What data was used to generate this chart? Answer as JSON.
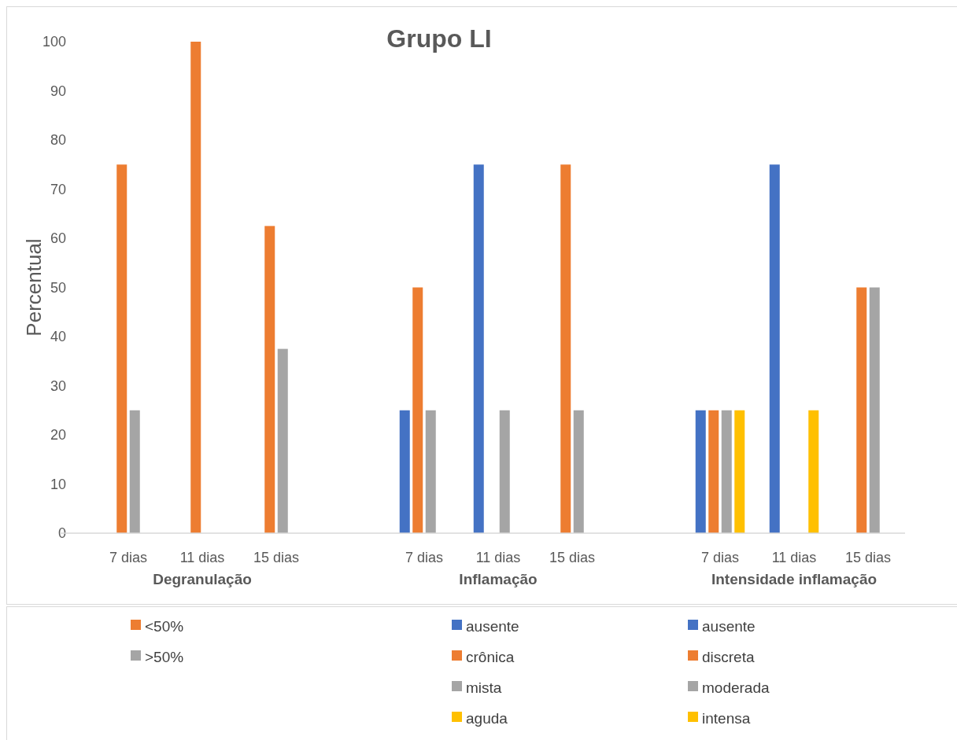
{
  "chart_data": {
    "type": "bar",
    "title": "Grupo LI",
    "ylabel": "Percentual",
    "categories": [
      "7 dias",
      "11 dias",
      "15 dias",
      null,
      "7 dias",
      "11 dias",
      "15 dias",
      null,
      "7 dias",
      "11 dias",
      "15 dias"
    ],
    "annotations": [
      "Degranulação",
      "Inflamação",
      "Intensidade inflamação"
    ],
    "series": [
      {
        "name": "<50%",
        "color": "#ed7d31",
        "values": [
          75,
          100,
          62.5,
          null,
          null,
          null,
          null,
          null,
          null,
          null,
          null
        ]
      },
      {
        "name": ">50%",
        "color": "#a5a5a5",
        "values": [
          25,
          0,
          37.5,
          null,
          null,
          null,
          null,
          null,
          null,
          null,
          null
        ]
      },
      {
        "name": "ausente",
        "color": "#4472c4",
        "values": [
          null,
          null,
          null,
          null,
          25,
          75,
          0,
          null,
          null,
          null,
          null
        ]
      },
      {
        "name": "crônica",
        "color": "#ed7d31",
        "values": [
          null,
          null,
          null,
          null,
          50,
          0,
          75,
          null,
          null,
          null,
          null
        ]
      },
      {
        "name": "mista",
        "color": "#a5a5a5",
        "values": [
          null,
          null,
          null,
          null,
          25,
          25,
          25,
          null,
          null,
          null,
          null
        ]
      },
      {
        "name": "aguda",
        "color": "#ffc000",
        "values": [
          null,
          null,
          null,
          null,
          0,
          0,
          0,
          null,
          null,
          null,
          null
        ]
      },
      {
        "name": "ausente",
        "color": "#4472c4",
        "values": [
          null,
          null,
          null,
          null,
          null,
          null,
          null,
          null,
          25,
          75,
          0
        ]
      },
      {
        "name": "discreta",
        "color": "#ed7d31",
        "values": [
          null,
          null,
          null,
          null,
          null,
          null,
          null,
          null,
          25,
          0,
          50
        ]
      },
      {
        "name": "moderada",
        "color": "#a5a5a5",
        "values": [
          null,
          null,
          null,
          null,
          null,
          null,
          null,
          null,
          25,
          0,
          50
        ]
      },
      {
        "name": "intensa",
        "color": "#ffc000",
        "values": [
          null,
          null,
          null,
          null,
          null,
          null,
          null,
          null,
          25,
          25,
          0
        ]
      }
    ],
    "ylim": [
      0,
      100
    ],
    "yticks": [
      0,
      10,
      20,
      30,
      40,
      50,
      60,
      70,
      80,
      90,
      100
    ],
    "grid": false,
    "legend": "bottom"
  }
}
